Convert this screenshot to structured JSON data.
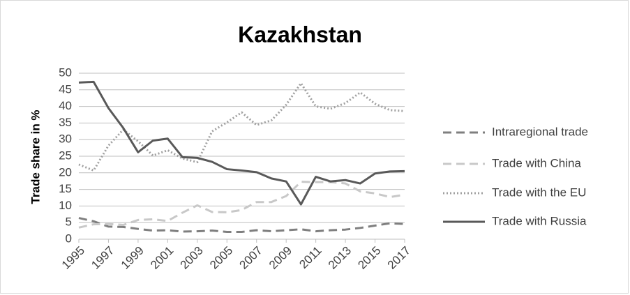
{
  "chart_data": {
    "type": "line",
    "title": "Kazakhstan",
    "ylabel": "Trade share in %",
    "x": [
      1995,
      1996,
      1997,
      1998,
      1999,
      2000,
      2001,
      2002,
      2003,
      2004,
      2005,
      2006,
      2007,
      2008,
      2009,
      2010,
      2011,
      2012,
      2013,
      2014,
      2015,
      2016,
      2017
    ],
    "xlim": [
      1995,
      2017
    ],
    "xticks": [
      1995,
      1997,
      1999,
      2001,
      2003,
      2005,
      2007,
      2009,
      2011,
      2013,
      2015,
      2017
    ],
    "ylim": [
      0,
      50
    ],
    "yticks": [
      0,
      5,
      10,
      15,
      20,
      25,
      30,
      35,
      40,
      45,
      50
    ],
    "grid": true,
    "legend": "right",
    "series": [
      {
        "name": "Intraregional trade",
        "color": "#7f7f7f",
        "dash": "dashed",
        "values": [
          6.4,
          5.4,
          3.8,
          3.7,
          3.1,
          2.6,
          2.7,
          2.3,
          2.4,
          2.6,
          2.2,
          2.2,
          2.7,
          2.4,
          2.7,
          3.0,
          2.4,
          2.7,
          2.9,
          3.4,
          4.1,
          4.8,
          4.6
        ]
      },
      {
        "name": "Trade with China",
        "color": "#c8c8c8",
        "dash": "dashed",
        "values": [
          3.5,
          4.5,
          4.6,
          4.3,
          5.8,
          6.0,
          5.5,
          8.0,
          10.2,
          8.2,
          8.1,
          8.8,
          11.2,
          11.2,
          13.0,
          17.3,
          17.2,
          17.2,
          16.8,
          14.4,
          13.8,
          12.7,
          13.4
        ]
      },
      {
        "name": "Trade with the EU",
        "color": "#a0a0a0",
        "dash": "dotted",
        "values": [
          22.5,
          20.7,
          28.2,
          33.0,
          29.5,
          25.2,
          26.8,
          24.3,
          23.2,
          32.5,
          35.2,
          38.2,
          34.4,
          35.8,
          40.5,
          47.0,
          40.0,
          39.3,
          41.0,
          44.2,
          40.8,
          38.9,
          38.6
        ]
      },
      {
        "name": "Trade with Russia",
        "color": "#595959",
        "dash": "solid",
        "values": [
          47.2,
          47.4,
          39.5,
          33.5,
          26.2,
          29.7,
          30.3,
          24.7,
          24.5,
          23.3,
          21.1,
          20.7,
          20.2,
          18.3,
          17.4,
          10.5,
          18.8,
          17.4,
          17.8,
          16.8,
          19.8,
          20.4,
          20.5
        ]
      }
    ]
  }
}
